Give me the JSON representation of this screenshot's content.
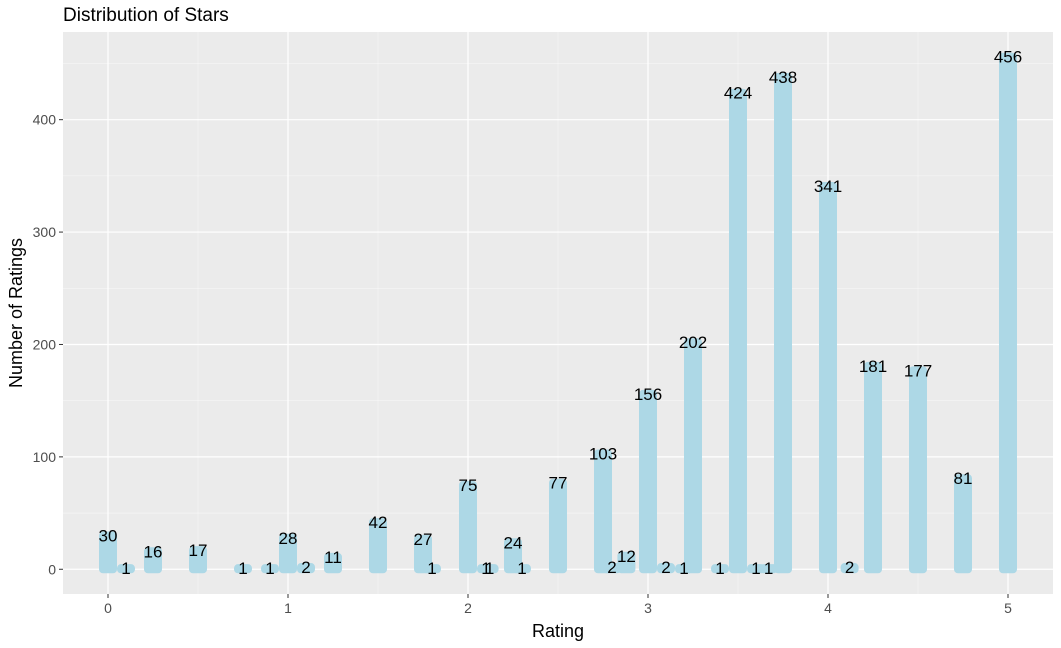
{
  "chart_data": {
    "type": "bar",
    "title": "Distribution of Stars",
    "xlabel": "Rating",
    "ylabel": "Number of Ratings",
    "xlim": [
      -0.25,
      5.25
    ],
    "ylim": [
      -22,
      478
    ],
    "x_ticks": [
      0,
      1,
      2,
      3,
      4,
      5
    ],
    "x_tick_labels": [
      "0",
      "1",
      "2",
      "3",
      "4",
      "5"
    ],
    "y_ticks": [
      0,
      100,
      200,
      300,
      400
    ],
    "y_tick_labels": [
      "0",
      "100",
      "200",
      "300",
      "400"
    ],
    "grid": true,
    "panel_color": "#ebebeb",
    "bar_color": "#add8e6",
    "x": [
      0,
      0.1,
      0.25,
      0.5,
      0.75,
      0.9,
      1,
      1.1,
      1.25,
      1.5,
      1.75,
      1.8,
      2,
      2.1,
      2.12,
      2.25,
      2.3,
      2.5,
      2.75,
      2.8,
      2.88,
      3,
      3.1,
      3.2,
      3.25,
      3.4,
      3.5,
      3.6,
      3.67,
      3.75,
      4,
      4.12,
      4.25,
      4.5,
      4.75,
      5
    ],
    "values": [
      30,
      1,
      16,
      17,
      1,
      1,
      28,
      2,
      11,
      42,
      27,
      1,
      75,
      1,
      1,
      24,
      1,
      77,
      103,
      2,
      12,
      156,
      2,
      1,
      202,
      1,
      424,
      1,
      1,
      438,
      341,
      2,
      181,
      177,
      81,
      456
    ]
  }
}
